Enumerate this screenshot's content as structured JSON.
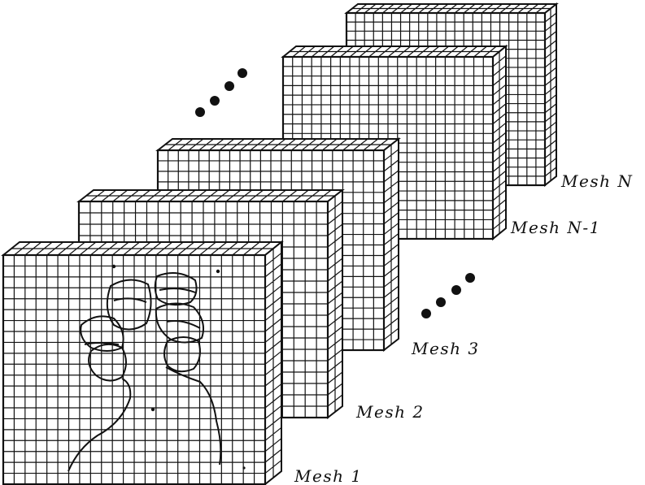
{
  "meshes": [
    {
      "label": "Mesh 1",
      "has_drawing": true
    },
    {
      "label": "Mesh 2",
      "has_drawing": false
    },
    {
      "label": "Mesh 3",
      "has_drawing": false
    },
    {
      "label": "Mesh N-1",
      "has_drawing": false
    },
    {
      "label": "Mesh N",
      "has_drawing": false
    }
  ],
  "ellipsis_markers": [
    {
      "name": "ellipsis-dots-upper",
      "icon": "four-dots"
    },
    {
      "name": "ellipsis-dots-lower",
      "icon": "four-dots"
    }
  ],
  "colors": {
    "ink": "#111111",
    "background": "#ffffff"
  }
}
